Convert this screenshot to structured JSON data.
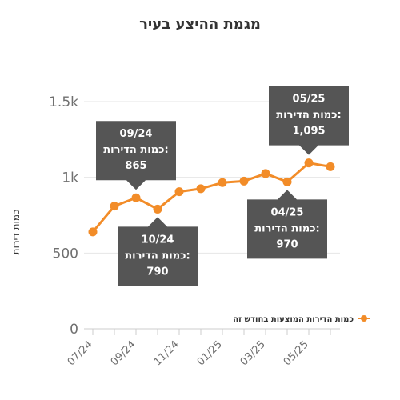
{
  "chart_data": {
    "type": "line",
    "title": "מגמת ההיצע בעיר",
    "ylabel": "כמות דירות",
    "xlabel": "",
    "ylim": [
      0,
      1500
    ],
    "yticks": [
      {
        "value": 0,
        "label": "0"
      },
      {
        "value": 500,
        "label": "500"
      },
      {
        "value": 1000,
        "label": "1k"
      },
      {
        "value": 1500,
        "label": "1.5k"
      }
    ],
    "x": [
      "07/24",
      "08/24",
      "09/24",
      "10/24",
      "11/24",
      "12/24",
      "01/25",
      "02/25",
      "03/25",
      "04/25",
      "05/25",
      "06/25"
    ],
    "xtick_labels": [
      "07/24",
      "09/24",
      "11/24",
      "01/25",
      "03/25",
      "05/25"
    ],
    "series": [
      {
        "name": "כמות הדירות המוצעות בחודש זה",
        "color": "#f28c28",
        "values": [
          640,
          810,
          865,
          790,
          905,
          925,
          965,
          975,
          1025,
          970,
          1095,
          1070
        ]
      }
    ],
    "grid": true,
    "legend": "bottom-right",
    "annotations": [
      {
        "index": 2,
        "date": "09/24",
        "label": "כמות הדירות:",
        "value": "865",
        "position": "above"
      },
      {
        "index": 3,
        "date": "10/24",
        "label": "כמות הדירות:",
        "value": "790",
        "position": "below"
      },
      {
        "index": 9,
        "date": "04/25",
        "label": "כמות הדירות:",
        "value": "970",
        "position": "below"
      },
      {
        "index": 10,
        "date": "05/25",
        "label": "כמות הדירות:",
        "value": "1,095",
        "position": "above"
      }
    ]
  }
}
